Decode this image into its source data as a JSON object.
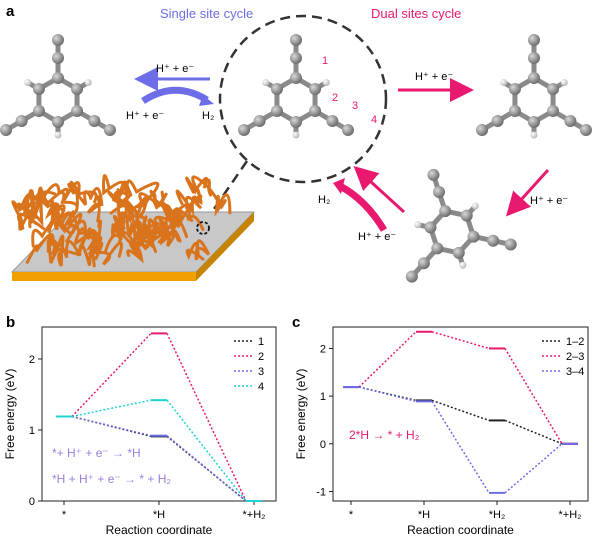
{
  "panel_a": {
    "label": "a",
    "single_site_title": "Single site cycle",
    "dual_sites_title": "Dual sites cycle",
    "single_top_reaction": "H⁺ + e⁻",
    "single_bottom_reaction": "H⁺ + e⁻",
    "single_product": "H₂",
    "dual_top_reaction": "H⁺ + e⁻",
    "dual_right_reaction": "H⁺ + e⁻",
    "dual_bottom_reaction": "H⁺ + e⁻",
    "dual_product": "H₂",
    "site_labels": [
      "1",
      "2",
      "3",
      "4"
    ],
    "colors": {
      "single": "#6d6de8",
      "dual": "#e8196e",
      "atom": "#8a8a8a",
      "hydrogen": "#e8e8e8",
      "polymer": "#d9731c",
      "substrate": "#bdbdbd",
      "substrate_edge": "#f0a000"
    },
    "icons": [
      "molecule-icon",
      "polymer-on-substrate-icon",
      "magnifier-circle-icon"
    ]
  },
  "chart_data": [
    {
      "type": "line",
      "panel": "b",
      "xlabel": "Reaction coordinate",
      "ylabel": "Free energy (eV)",
      "x_ticks": [
        "*",
        "*H",
        "*+H₂"
      ],
      "ylim": [
        0,
        2.45
      ],
      "y_ticks": [
        0,
        1,
        2
      ],
      "legend_position": "top-right",
      "annotation_1": "*+ H⁺ + e⁻ → *H",
      "annotation_2": "*H + H⁺ + e⁻ → * + H₂",
      "annotation_color": "#9b7fe0",
      "series": [
        {
          "name": "1",
          "color": "#222222",
          "values": [
            1.19,
            0.91,
            0.0
          ]
        },
        {
          "name": "2",
          "color": "#e8196e",
          "values": [
            1.19,
            2.36,
            0.0
          ]
        },
        {
          "name": "3",
          "color": "#6d6de8",
          "values": [
            1.19,
            0.92,
            0.0
          ]
        },
        {
          "name": "4",
          "color": "#1fd3d3",
          "values": [
            1.19,
            1.42,
            0.0
          ]
        }
      ]
    },
    {
      "type": "line",
      "panel": "c",
      "xlabel": "Reaction coordinate",
      "ylabel": "Free energy (eV)",
      "x_ticks": [
        "*",
        "*H",
        "*H₂",
        "*+H₂"
      ],
      "ylim": [
        -1.2,
        2.45
      ],
      "y_ticks": [
        -1,
        0,
        1,
        2
      ],
      "legend_position": "top-right",
      "annotation_1": "2*H → * + H₂",
      "annotation_color": "#e8196e",
      "series": [
        {
          "name": "1–2",
          "color": "#222222",
          "values": [
            1.19,
            0.91,
            0.49,
            0.0
          ]
        },
        {
          "name": "2–3",
          "color": "#e8196e",
          "values": [
            1.19,
            2.35,
            2.0,
            0.0
          ]
        },
        {
          "name": "3–4",
          "color": "#6d6de8",
          "values": [
            1.19,
            0.89,
            -1.03,
            0.0
          ]
        }
      ]
    }
  ]
}
